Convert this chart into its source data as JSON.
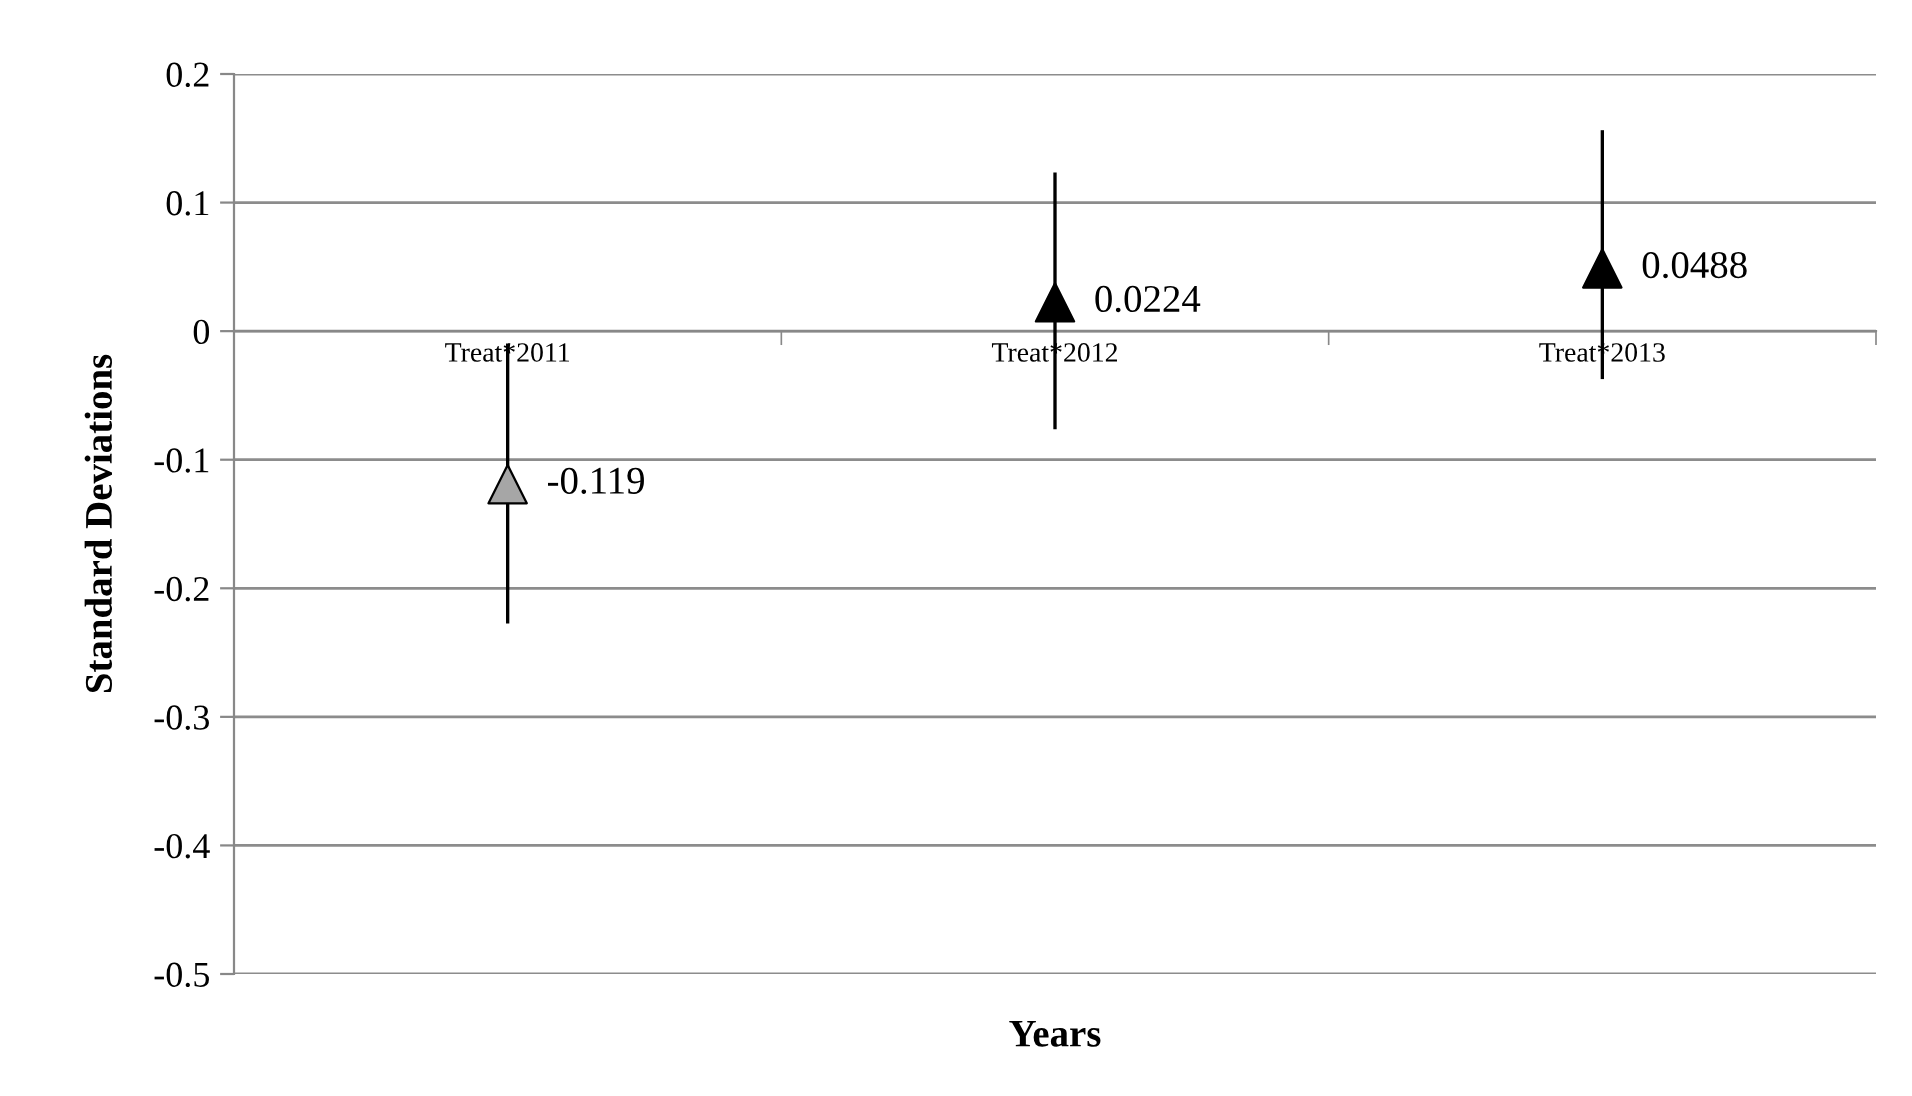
{
  "chart_data": {
    "type": "scatter",
    "xlabel": "Years",
    "ylabel": "Standard Deviations",
    "categories": [
      "Treat*2011",
      "Treat*2012",
      "Treat*2013"
    ],
    "values": [
      -0.119,
      0.0224,
      0.0488
    ],
    "colors": [
      "#a6a6a6",
      "#000000",
      "#000000"
    ],
    "errors": [
      [
        -0.226,
        -0.011
      ],
      [
        -0.075,
        0.122
      ],
      [
        -0.036,
        0.155
      ]
    ],
    "marker": "triangle",
    "data_labels": true,
    "ylim": [
      -0.5,
      0.2
    ],
    "yticks": [
      -0.5,
      -0.4,
      -0.3,
      -0.2,
      -0.1,
      0,
      0.1,
      0.2
    ],
    "grid": "y",
    "legend": false
  }
}
